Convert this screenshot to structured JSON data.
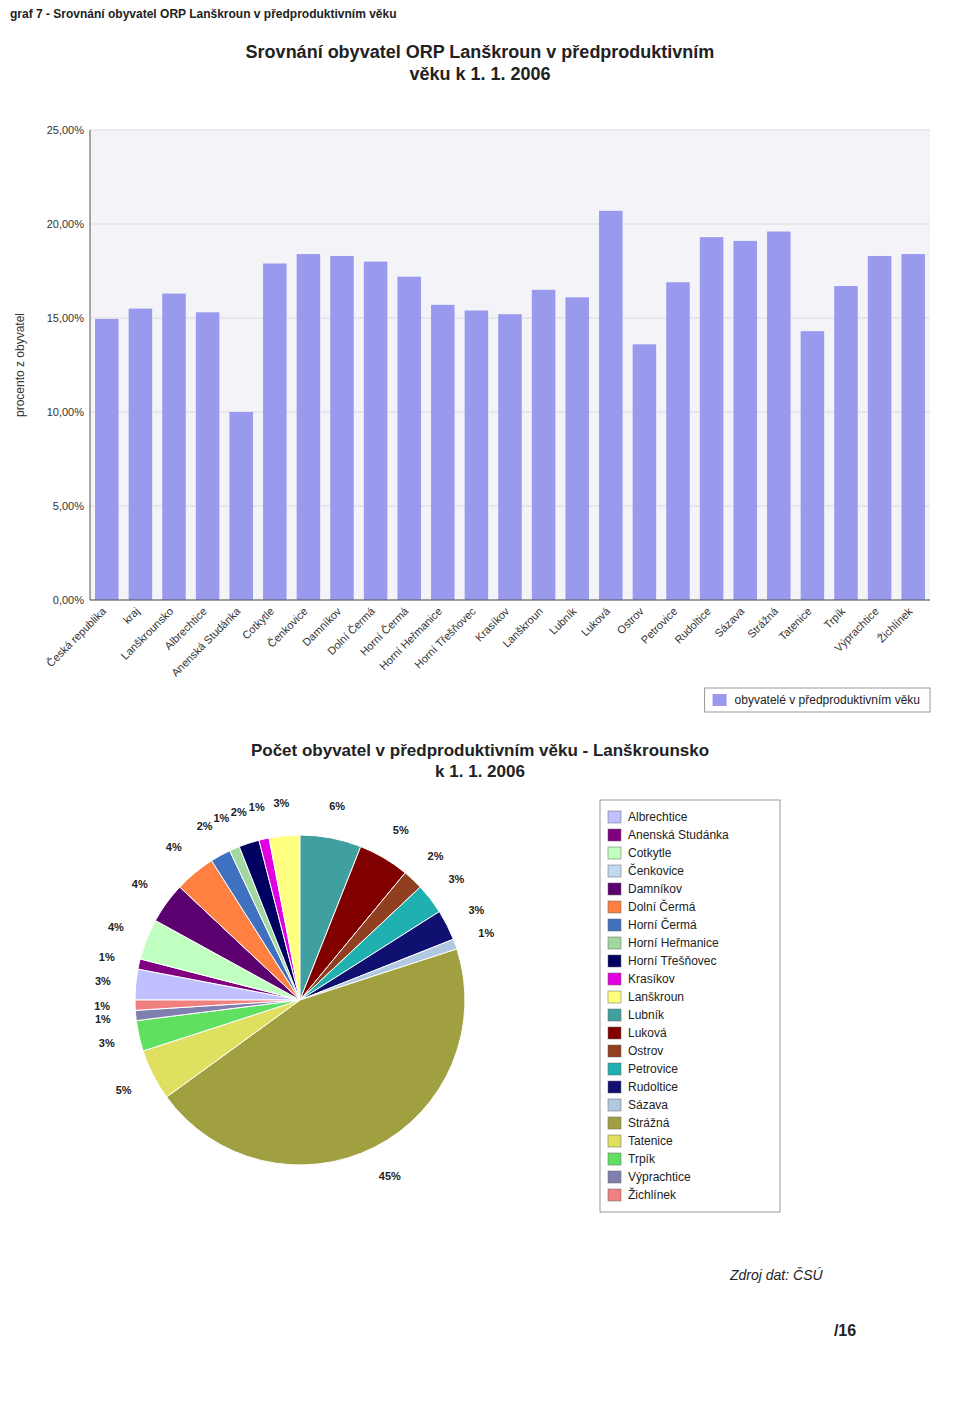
{
  "chart_data": [
    {
      "type": "bar",
      "title": "Srovnání obyvatel ORP Lanškroun v předproduktivním\nvěku k 1. 1. 2006",
      "annotations": [
        "graf 7 - Srovnání obyvatel ORP Lanškroun v předproduktivním věku"
      ],
      "y_label": "procento z obyvatel",
      "categories": [
        "Česká republika",
        "kraj",
        "Lanškrounsko",
        "Albrechtice",
        "Anenská Studánka",
        "Cotkytle",
        "Čenkovice",
        "Damníkov",
        "Dolní Čermá",
        "Horní Čermá",
        "Horní Heřmanice",
        "Horní Třešňovec",
        "Krasíkov",
        "Lanškroun",
        "Lubník",
        "Luková",
        "Ostrov",
        "Petrovice",
        "Rudoltice",
        "Sázava",
        "Strážná",
        "Tatenice",
        "Trpík",
        "Výprachtice",
        "Žichlínek"
      ],
      "series": [
        {
          "name": "obyvatelé v předproduktivním věku",
          "color": "#9999EE",
          "values": [
            14.95,
            15.5,
            16.3,
            15.3,
            10.0,
            17.9,
            18.4,
            18.3,
            18.0,
            17.2,
            15.7,
            15.4,
            15.2,
            16.5,
            16.1,
            20.7,
            13.6,
            16.9,
            19.3,
            19.1,
            19.6,
            14.3,
            16.7,
            18.3,
            18.4
          ]
        }
      ],
      "ylim": [
        0,
        25
      ],
      "yticks": [
        {
          "value": 0,
          "label": "0,00%"
        },
        {
          "value": 5,
          "label": "5,00%"
        },
        {
          "value": 10,
          "label": "10,00%"
        },
        {
          "value": 15,
          "label": "15,00%"
        },
        {
          "value": 20,
          "label": "20,00%"
        },
        {
          "value": 25,
          "label": "25,00%"
        }
      ],
      "grid": true,
      "legend": "lower right"
    },
    {
      "type": "pie",
      "title": "Počet obyvatel v předproduktivním věku - Lanškrounsko\nk 1. 1. 2006",
      "annotations": [
        "Zdroj dat: ČSÚ",
        "/16"
      ],
      "categories": [
        "Albrechtice",
        "Anenská Studánka",
        "Cotkytle",
        "Čenkovice",
        "Damníkov",
        "Dolní Čermá",
        "Horní Čermá",
        "Horní Heřmanice",
        "Horní Třešňovec",
        "Krasíkov",
        "Lanškroun",
        "Lubník",
        "Luková",
        "Ostrov",
        "Petrovice",
        "Rudoltice",
        "Sázava",
        "Strážná",
        "Tatenice",
        "Trpík",
        "Výprachtice",
        "Žichlínek"
      ],
      "values": [
        3,
        1,
        4,
        0,
        4,
        4,
        2,
        1,
        2,
        1,
        3,
        6,
        5,
        2,
        3,
        3,
        1,
        45,
        5,
        3,
        1,
        1
      ],
      "value_labels": [
        "3%",
        "1%",
        "4%",
        null,
        "4%",
        "4%",
        "2%",
        "1%",
        "2%",
        "1%",
        "3%",
        "6%",
        "5%",
        "2%",
        "3%",
        "3%",
        "1%",
        "45%",
        "5%",
        "3%",
        "1%",
        "1%"
      ],
      "colors": [
        "#C0C0FF",
        "#800080",
        "#C0FFC0",
        "#C0D8F0",
        "#5C0070",
        "#FF8040",
        "#4070C0",
        "#A0D8A0",
        "#000060",
        "#E000E0",
        "#FFFF80",
        "#40A0A0",
        "#800000",
        "#904020",
        "#20B0B0",
        "#101070",
        "#B0C8E0",
        "#A0A040",
        "#E0E060",
        "#60E060",
        "#8080B0",
        "#F08080"
      ],
      "data_labels": true,
      "legend": "right"
    }
  ]
}
